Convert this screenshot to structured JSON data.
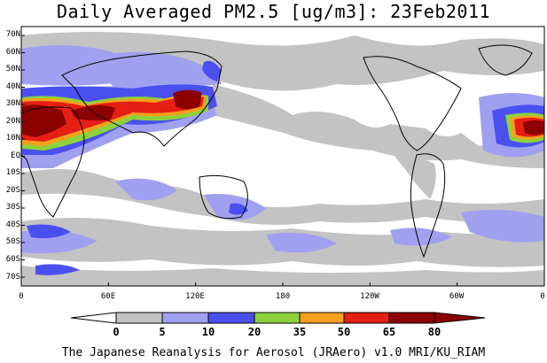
{
  "title": "Daily Averaged PM2.5 [ug/m3]: 23Feb2011",
  "footer": "The Japanese Reanalysis for Aerosol (JRAero) v1.0 MRI/KU_RIAM",
  "map": {
    "lat_labels": [
      "70N",
      "60N",
      "50N",
      "40N",
      "30N",
      "20N",
      "10N",
      "EQ",
      "10S",
      "20S",
      "30S",
      "40S",
      "50S",
      "60S",
      "70S"
    ],
    "lon_labels": [
      "0",
      "60E",
      "120E",
      "180",
      "120W",
      "60W",
      "0"
    ]
  },
  "colorbar": {
    "levels": [
      "0",
      "5",
      "10",
      "20",
      "35",
      "50",
      "65",
      "80"
    ],
    "colors": [
      "#ffffff",
      "#c3c3c3",
      "#a0a0f0",
      "#4a50f0",
      "#8cd23c",
      "#f5a01e",
      "#e61e14",
      "#8c0000"
    ]
  }
}
